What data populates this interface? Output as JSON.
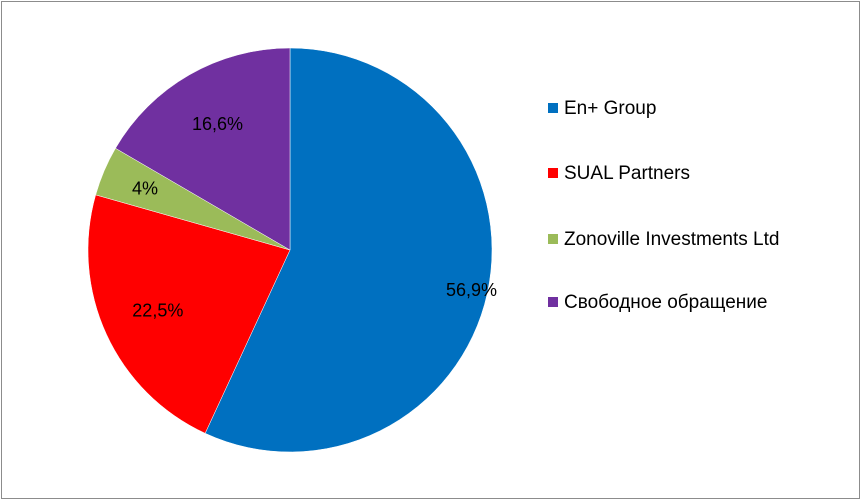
{
  "chart_data": {
    "type": "pie",
    "series": [
      {
        "name": "En+ Group",
        "value": 56.9,
        "label": "56,9%",
        "color": "#0070c0"
      },
      {
        "name": "SUAL Partners",
        "value": 22.5,
        "label": "22,5%",
        "color": "#ff0000"
      },
      {
        "name": "Zonoville Investments Ltd",
        "value": 4,
        "label": "4%",
        "color": "#9bbb59"
      },
      {
        "name": "Свободное обращение",
        "value": 16.6,
        "label": "16,6%",
        "color": "#7030a0"
      }
    ],
    "start_angle_deg": 0,
    "direction": "clockwise",
    "legend_position": "right"
  }
}
